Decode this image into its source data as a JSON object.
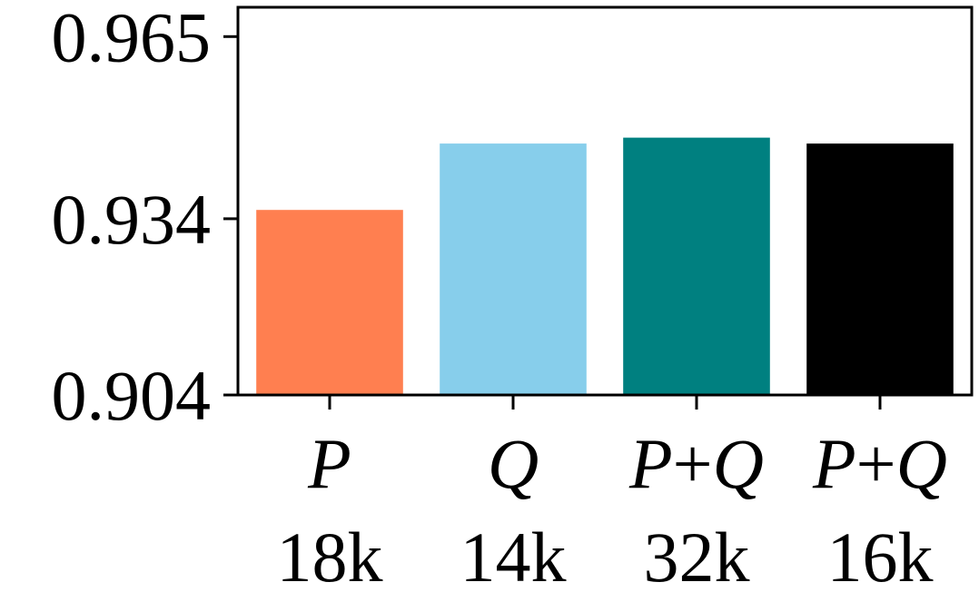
{
  "chart_data": {
    "type": "bar",
    "categories": [
      {
        "name_parts": [
          "P"
        ],
        "count": "18k"
      },
      {
        "name_parts": [
          "Q"
        ],
        "count": "14k"
      },
      {
        "name_parts": [
          "P",
          "+",
          "Q"
        ],
        "count": "32k"
      },
      {
        "name_parts": [
          "P",
          "+",
          "Q"
        ],
        "count": "16k"
      }
    ],
    "values": [
      0.9355,
      0.9468,
      0.9478,
      0.9468
    ],
    "colors": [
      "#ff7f50",
      "#87ceeb",
      "#008080",
      "#000000"
    ],
    "yticks": [
      "0.904",
      "0.934",
      "0.965"
    ],
    "ytick_values": [
      0.904,
      0.934,
      0.965
    ],
    "ylim": [
      0.904,
      0.97
    ],
    "grid": false,
    "title": "",
    "xlabel": "",
    "ylabel": ""
  }
}
